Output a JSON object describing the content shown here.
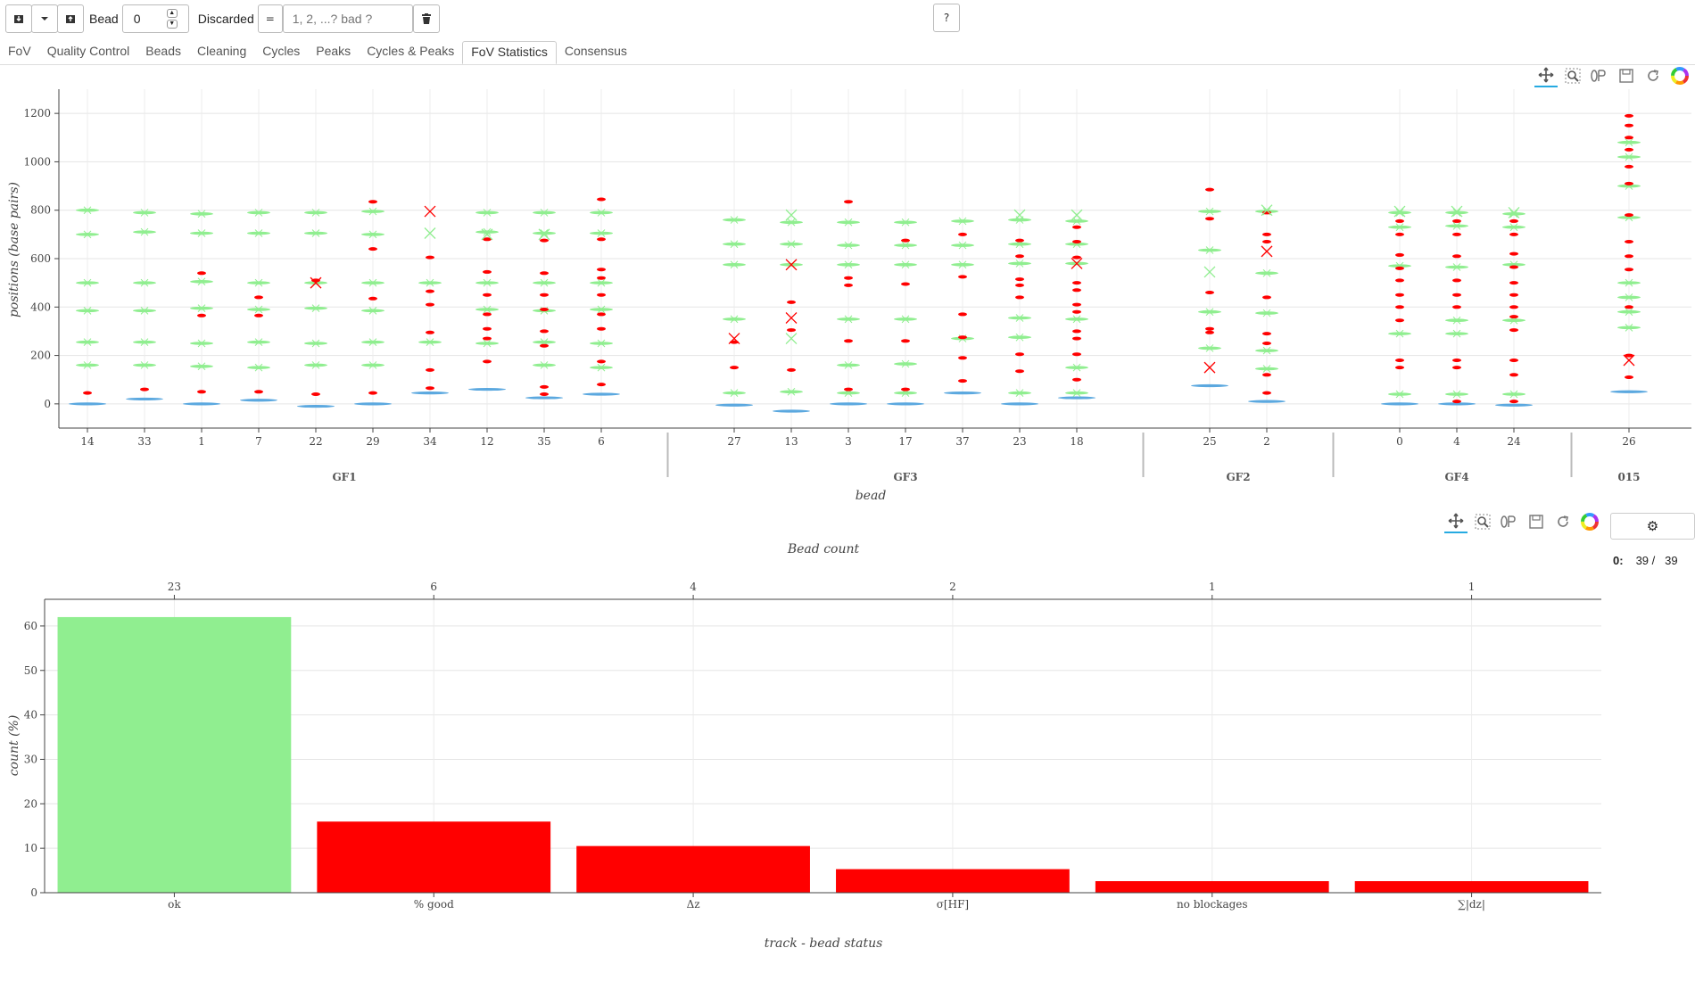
{
  "toolbar": {
    "bead_label": "Bead",
    "bead_value": "0",
    "discarded_label": "Discarded",
    "equals_label": "=",
    "discarded_placeholder": "1, 2, ...? bad ?",
    "help_label": "?"
  },
  "tabs": [
    "FoV",
    "Quality Control",
    "Beads",
    "Cleaning",
    "Cycles",
    "Peaks",
    "Cycles & Peaks",
    "FoV Statistics",
    "Consensus"
  ],
  "active_tab": "FoV Statistics",
  "counter": {
    "index": "0:",
    "shown": "39 /",
    "total": "39"
  },
  "colors": {
    "ok": "#90ee90",
    "bad": "#ff0000",
    "blue": "#5ba8df",
    "accent": "#26aae1"
  },
  "chart_data": [
    {
      "type": "scatter",
      "ylabel": "positions (base pairs)",
      "xlabel": "bead",
      "ylim": [
        -100,
        1300
      ],
      "yticks": [
        0,
        200,
        400,
        600,
        800,
        1000,
        1200
      ],
      "grid": true,
      "groups": [
        {
          "name": "GF1",
          "beads": [
            {
              "id": "14",
              "blue": 0,
              "green": [
                160,
                255,
                385,
                500,
                700,
                800
              ],
              "red": [
                45
              ]
            },
            {
              "id": "33",
              "blue": 20,
              "green": [
                160,
                255,
                385,
                500,
                710,
                790
              ],
              "red": [
                60
              ]
            },
            {
              "id": "1",
              "blue": 0,
              "green": [
                155,
                250,
                395,
                505,
                705,
                785
              ],
              "red": [
                50,
                365,
                540
              ]
            },
            {
              "id": "7",
              "blue": 15,
              "green": [
                150,
                255,
                390,
                500,
                705,
                790
              ],
              "red": [
                50,
                365,
                440
              ]
            },
            {
              "id": "22",
              "blue": -10,
              "green": [
                160,
                250,
                395,
                500,
                705,
                790
              ],
              "red": [
                40,
                510
              ]
            },
            {
              "id": "29",
              "blue": 0,
              "green": [
                160,
                255,
                385,
                500,
                700,
                795
              ],
              "red": [
                45,
                435,
                640,
                835
              ]
            },
            {
              "id": "34",
              "blue": 45,
              "green": [
                255,
                500
              ],
              "red": [
                65,
                140,
                295,
                410,
                465,
                605
              ]
            },
            {
              "id": "12",
              "blue": 60,
              "green": [
                250,
                390,
                500,
                710,
                790
              ],
              "red": [
                175,
                270,
                310,
                370,
                450,
                545,
                680
              ]
            },
            {
              "id": "35",
              "blue": 25,
              "green": [
                160,
                255,
                385,
                500,
                705,
                790
              ],
              "red": [
                40,
                70,
                240,
                300,
                390,
                450,
                540,
                675
              ]
            },
            {
              "id": "6",
              "blue": 40,
              "green": [
                150,
                250,
                390,
                500,
                705,
                790
              ],
              "red": [
                80,
                175,
                310,
                370,
                450,
                520,
                555,
                680,
                845
              ]
            }
          ]
        },
        {
          "name": "GF3",
          "beads": [
            {
              "id": "27",
              "blue": -5,
              "green": [
                45,
                350,
                575,
                660,
                760
              ],
              "red": [
                150,
                255
              ]
            },
            {
              "id": "13",
              "blue": -30,
              "green": [
                50,
                575,
                660,
                750
              ],
              "red": [
                140,
                305,
                420
              ]
            },
            {
              "id": "3",
              "blue": 0,
              "green": [
                45,
                160,
                350,
                575,
                655,
                750
              ],
              "red": [
                60,
                260,
                490,
                520,
                835
              ]
            },
            {
              "id": "17",
              "blue": 0,
              "green": [
                45,
                165,
                350,
                575,
                655,
                750
              ],
              "red": [
                60,
                260,
                495,
                675
              ]
            },
            {
              "id": "37",
              "blue": 45,
              "green": [
                270,
                575,
                655,
                755
              ],
              "red": [
                95,
                190,
                275,
                370,
                525,
                700
              ]
            },
            {
              "id": "23",
              "blue": 0,
              "green": [
                45,
                275,
                355,
                580,
                660,
                760
              ],
              "red": [
                135,
                205,
                440,
                490,
                515,
                610,
                675
              ]
            },
            {
              "id": "18",
              "blue": 25,
              "green": [
                45,
                150,
                350,
                580,
                660,
                755
              ],
              "red": [
                100,
                205,
                270,
                300,
                380,
                410,
                470,
                500,
                605,
                670,
                730
              ]
            }
          ]
        },
        {
          "name": "GF2",
          "beads": [
            {
              "id": "25",
              "blue": 75,
              "green": [
                230,
                380,
                635,
                795
              ],
              "red": [
                295,
                310,
                460,
                765,
                885
              ]
            },
            {
              "id": "2",
              "blue": 10,
              "green": [
                145,
                220,
                375,
                540,
                795
              ],
              "red": [
                45,
                120,
                250,
                290,
                440,
                670,
                700,
                790
              ]
            }
          ]
        },
        {
          "name": "GF4",
          "beads": [
            {
              "id": "0",
              "blue": 0,
              "green": [
                40,
                290,
                570,
                730,
                790
              ],
              "red": [
                150,
                180,
                345,
                400,
                450,
                510,
                560,
                615,
                700,
                755
              ]
            },
            {
              "id": "4",
              "blue": 0,
              "green": [
                40,
                290,
                345,
                565,
                735,
                790
              ],
              "red": [
                10,
                150,
                180,
                400,
                450,
                510,
                610,
                700,
                755
              ]
            },
            {
              "id": "24",
              "blue": -5,
              "green": [
                40,
                345,
                575,
                730,
                785
              ],
              "red": [
                10,
                120,
                180,
                305,
                360,
                400,
                450,
                500,
                565,
                620,
                700,
                755
              ]
            }
          ]
        },
        {
          "name": "015",
          "beads": [
            {
              "id": "26",
              "blue": 50,
              "green": [
                315,
                380,
                440,
                500,
                770,
                900,
                1020,
                1080
              ],
              "red": [
                110,
                200,
                400,
                555,
                610,
                670,
                780,
                910,
                980,
                1050,
                1100,
                1150,
                1190
              ]
            }
          ]
        }
      ],
      "crosses": [
        {
          "bead": "22",
          "y": 500,
          "color": "bad"
        },
        {
          "bead": "34",
          "y": 795,
          "color": "bad"
        },
        {
          "bead": "13",
          "y": 575,
          "color": "bad"
        },
        {
          "bead": "13",
          "y": 355,
          "color": "bad"
        },
        {
          "bead": "27",
          "y": 270,
          "color": "bad"
        },
        {
          "bead": "18",
          "y": 580,
          "color": "bad"
        },
        {
          "bead": "25",
          "y": 150,
          "color": "bad"
        },
        {
          "bead": "2",
          "y": 630,
          "color": "bad"
        },
        {
          "bead": "26",
          "y": 180,
          "color": "bad"
        },
        {
          "bead": "34",
          "y": 705,
          "color": "ok"
        },
        {
          "bead": "12",
          "y": 700,
          "color": "ok"
        },
        {
          "bead": "35",
          "y": 700,
          "color": "ok"
        },
        {
          "bead": "13",
          "y": 780,
          "color": "ok"
        },
        {
          "bead": "13",
          "y": 270,
          "color": "ok"
        },
        {
          "bead": "23",
          "y": 780,
          "color": "ok"
        },
        {
          "bead": "18",
          "y": 780,
          "color": "ok"
        },
        {
          "bead": "25",
          "y": 545,
          "color": "ok"
        },
        {
          "bead": "2",
          "y": 800,
          "color": "ok"
        },
        {
          "bead": "0",
          "y": 795,
          "color": "ok"
        },
        {
          "bead": "4",
          "y": 795,
          "color": "ok"
        },
        {
          "bead": "24",
          "y": 790,
          "color": "ok"
        }
      ]
    },
    {
      "type": "bar",
      "title": "Bead count",
      "xlabel": "track - bead status",
      "ylabel": "count (%)",
      "categories": [
        "ok",
        "% good",
        "Δz",
        "σ[HF]",
        "no blockages",
        "∑|dz|"
      ],
      "values": [
        62,
        16,
        10.5,
        5.3,
        2.6,
        2.6
      ],
      "counts": [
        "23",
        "6",
        "4",
        "2",
        "1",
        "1"
      ],
      "bar_colors": [
        "ok",
        "bad",
        "bad",
        "bad",
        "bad",
        "bad"
      ],
      "ylim": [
        0,
        66
      ],
      "yticks": [
        0,
        10,
        20,
        30,
        40,
        50,
        60
      ],
      "grid": true
    }
  ]
}
